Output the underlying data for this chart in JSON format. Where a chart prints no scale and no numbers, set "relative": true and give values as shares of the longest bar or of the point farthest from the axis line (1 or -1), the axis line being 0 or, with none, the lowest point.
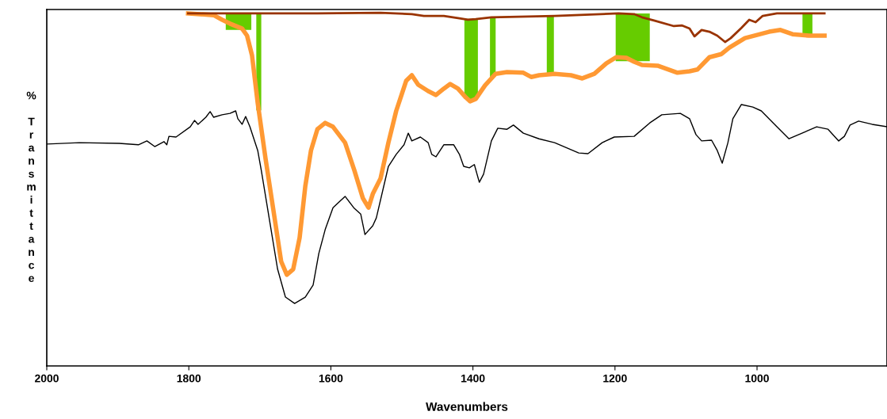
{
  "chart_data": {
    "type": "line",
    "relative": true,
    "xlabel": "Wavenumbers",
    "ylabel": "% Transmittance",
    "xlim": [
      2000,
      817
    ],
    "xticks": [
      2000,
      1800,
      1600,
      1400,
      1200,
      1000
    ],
    "grid": false,
    "legend": false,
    "marker": "none",
    "line_style": "solid",
    "series": [
      {
        "color": "#000000",
        "x": [
          2000,
          1954,
          1898,
          1871,
          1859,
          1848,
          1835,
          1831,
          1828,
          1818,
          1798,
          1792,
          1787,
          1776,
          1770,
          1765,
          1753,
          1742,
          1734,
          1731,
          1725,
          1720,
          1714,
          1703,
          1698,
          1686,
          1675,
          1664,
          1651,
          1636,
          1625,
          1617,
          1608,
          1597,
          1580,
          1567,
          1558,
          1552,
          1541,
          1536,
          1519,
          1508,
          1497,
          1491,
          1486,
          1474,
          1463,
          1458,
          1452,
          1441,
          1427,
          1419,
          1413,
          1405,
          1398,
          1391,
          1385,
          1374,
          1365,
          1352,
          1343,
          1329,
          1307,
          1285,
          1251,
          1238,
          1218,
          1201,
          1173,
          1151,
          1134,
          1108,
          1095,
          1086,
          1078,
          1064,
          1056,
          1049,
          1041,
          1034,
          1022,
          1006,
          994,
          972,
          955,
          916,
          900,
          885,
          877,
          869,
          857,
          838,
          817
        ],
        "values": [
          0.628,
          0.632,
          0.63,
          0.626,
          0.637,
          0.621,
          0.635,
          0.626,
          0.65,
          0.648,
          0.677,
          0.695,
          0.684,
          0.704,
          0.72,
          0.704,
          0.711,
          0.715,
          0.722,
          0.7,
          0.684,
          0.706,
          0.677,
          0.61,
          0.554,
          0.408,
          0.274,
          0.195,
          0.177,
          0.195,
          0.229,
          0.318,
          0.386,
          0.448,
          0.48,
          0.446,
          0.43,
          0.372,
          0.397,
          0.419,
          0.565,
          0.599,
          0.626,
          0.659,
          0.637,
          0.648,
          0.632,
          0.599,
          0.592,
          0.626,
          0.626,
          0.599,
          0.565,
          0.561,
          0.57,
          0.52,
          0.543,
          0.637,
          0.673,
          0.67,
          0.682,
          0.659,
          0.643,
          0.632,
          0.603,
          0.601,
          0.632,
          0.648,
          0.65,
          0.688,
          0.711,
          0.715,
          0.7,
          0.655,
          0.637,
          0.639,
          0.61,
          0.574,
          0.632,
          0.7,
          0.74,
          0.733,
          0.722,
          0.677,
          0.643,
          0.677,
          0.67,
          0.637,
          0.65,
          0.682,
          0.693,
          0.684,
          0.677
        ]
      },
      {
        "color": "#ff9933",
        "x": [
          1801,
          1765,
          1753,
          1742,
          1725,
          1718,
          1711,
          1703,
          1692,
          1681,
          1670,
          1662,
          1653,
          1644,
          1636,
          1628,
          1619,
          1608,
          1597,
          1580,
          1567,
          1555,
          1547,
          1541,
          1530,
          1519,
          1508,
          1494,
          1486,
          1477,
          1463,
          1452,
          1441,
          1432,
          1421,
          1410,
          1404,
          1396,
          1383,
          1368,
          1352,
          1329,
          1318,
          1307,
          1285,
          1262,
          1246,
          1229,
          1212,
          1198,
          1184,
          1173,
          1162,
          1140,
          1112,
          1095,
          1084,
          1067,
          1050,
          1039,
          1017,
          983,
          967,
          950,
          927,
          905
        ],
        "values": [
          0.998,
          0.993,
          0.98,
          0.969,
          0.955,
          0.935,
          0.879,
          0.744,
          0.587,
          0.442,
          0.296,
          0.258,
          0.274,
          0.363,
          0.509,
          0.61,
          0.67,
          0.688,
          0.677,
          0.632,
          0.554,
          0.475,
          0.448,
          0.487,
          0.531,
          0.632,
          0.722,
          0.807,
          0.823,
          0.796,
          0.778,
          0.767,
          0.785,
          0.798,
          0.785,
          0.76,
          0.749,
          0.756,
          0.794,
          0.827,
          0.832,
          0.83,
          0.818,
          0.823,
          0.827,
          0.823,
          0.814,
          0.827,
          0.857,
          0.874,
          0.872,
          0.861,
          0.852,
          0.85,
          0.83,
          0.834,
          0.839,
          0.874,
          0.883,
          0.901,
          0.928,
          0.946,
          0.951,
          0.939,
          0.935,
          0.935
        ]
      },
      {
        "color": "#993300",
        "x": [
          1801,
          1619,
          1530,
          1486,
          1469,
          1441,
          1419,
          1407,
          1396,
          1374,
          1285,
          1195,
          1173,
          1162,
          1145,
          1117,
          1106,
          1095,
          1088,
          1078,
          1067,
          1056,
          1045,
          1037,
          1022,
          1011,
          1002,
          992,
          972,
          905
        ],
        "values": [
          0.998,
          0.998,
          1.0,
          0.996,
          0.991,
          0.991,
          0.984,
          0.98,
          0.982,
          0.987,
          0.991,
          0.998,
          0.996,
          0.987,
          0.978,
          0.962,
          0.964,
          0.955,
          0.933,
          0.951,
          0.946,
          0.935,
          0.917,
          0.928,
          0.957,
          0.98,
          0.973,
          0.991,
          0.998,
          0.998
        ]
      }
    ],
    "bands": [
      {
        "axis": "x",
        "from": 1748,
        "to": 1712,
        "color": "#66cc00"
      },
      {
        "axis": "x",
        "from": 1705,
        "to": 1698,
        "color": "#66cc00"
      },
      {
        "axis": "x",
        "from": 1412,
        "to": 1393,
        "color": "#66cc00"
      },
      {
        "axis": "x",
        "from": 1376,
        "to": 1368,
        "color": "#66cc00"
      },
      {
        "axis": "x",
        "from": 1296,
        "to": 1286,
        "color": "#66cc00"
      },
      {
        "axis": "x",
        "from": 1199,
        "to": 1151,
        "color": "#66cc00"
      },
      {
        "axis": "x",
        "from": 936,
        "to": 922,
        "color": "#66cc00"
      }
    ]
  }
}
